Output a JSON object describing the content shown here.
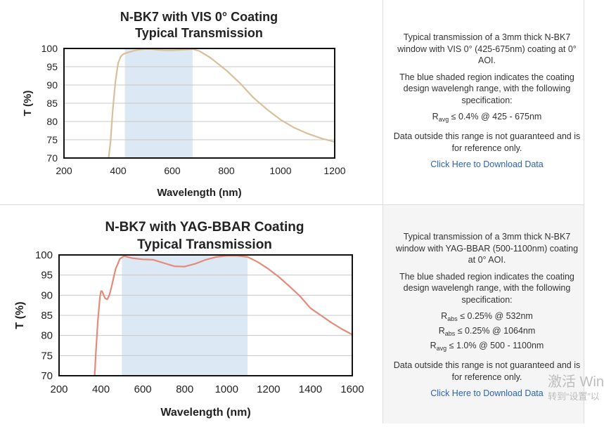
{
  "chart_data": [
    {
      "type": "line",
      "title_line1": "N-BK7 with VIS 0° Coating",
      "title_line2": "Typical Transmission",
      "xlabel": "Wavelength (nm)",
      "ylabel": "T (%)",
      "xlim": [
        200,
        1200
      ],
      "ylim": [
        70,
        100
      ],
      "xticks": [
        200,
        400,
        600,
        800,
        1000,
        1200
      ],
      "yticks": [
        70,
        75,
        80,
        85,
        90,
        95,
        100
      ],
      "grid": true,
      "shaded_region": [
        425,
        675
      ],
      "line_color": "#d8c09a",
      "shade_color": "#dce9f5",
      "series": [
        {
          "x": [
            365,
            372,
            380,
            390,
            400,
            410,
            420,
            440,
            460,
            480,
            500,
            525,
            550,
            575,
            600,
            625,
            650,
            675,
            700,
            740,
            800,
            850,
            900,
            950,
            1000,
            1050,
            1100,
            1150,
            1200
          ],
          "values": [
            70,
            74.5,
            83,
            91,
            96,
            97.8,
            98.5,
            99,
            99.4,
            99.7,
            99.8,
            99.8,
            99.6,
            99.5,
            99.5,
            99.6,
            99.7,
            99.8,
            99.3,
            97.5,
            94,
            90.5,
            86.5,
            83.3,
            80.5,
            78.3,
            76.7,
            75.4,
            74.4
          ]
        }
      ]
    },
    {
      "type": "line",
      "title_line1": "N-BK7 with YAG-BBAR Coating",
      "title_line2": "Typical Transmission",
      "xlabel": "Wavelength (nm)",
      "ylabel": "T (%)",
      "xlim": [
        200,
        1600
      ],
      "ylim": [
        70,
        100
      ],
      "xticks": [
        200,
        400,
        600,
        800,
        1000,
        1200,
        1400,
        1600
      ],
      "yticks": [
        70,
        75,
        80,
        85,
        90,
        95,
        100
      ],
      "grid": true,
      "shaded_region": [
        500,
        1100
      ],
      "line_color": "#e58a78",
      "shade_color": "#dce9f5",
      "series": [
        {
          "x": [
            370,
            375,
            385,
            395,
            400,
            405,
            420,
            430,
            440,
            450,
            470,
            490,
            510,
            550,
            600,
            650,
            700,
            750,
            800,
            850,
            900,
            950,
            1000,
            1050,
            1100,
            1150,
            1200,
            1250,
            1300,
            1350,
            1400,
            1450,
            1500,
            1550,
            1600
          ],
          "values": [
            70,
            75,
            83.5,
            89.5,
            91,
            91,
            89.2,
            89,
            90,
            92,
            96.5,
            99,
            99.7,
            99.2,
            98.9,
            98.8,
            98,
            97.2,
            97.1,
            97.8,
            98.8,
            99.5,
            99.8,
            99.8,
            99.5,
            98.2,
            96.5,
            94.5,
            92.2,
            89.8,
            86.8,
            85,
            83.2,
            81.6,
            80.2
          ]
        }
      ]
    }
  ],
  "panels": [
    {
      "desc1": "Typical transmission of a 3mm thick N-BK7 window with VIS 0° (425-675nm) coating at 0° AOI.",
      "desc2": "The blue shaded region indicates the coating design wavelengh range, with the following specification:",
      "specs": [
        {
          "sym": "R",
          "sub": "avg",
          "text": " ≤ 0.4% @ 425 - 675nm"
        }
      ],
      "desc3": "Data outside this range is not guaranteed and is for reference only.",
      "link": "Click Here to Download Data"
    },
    {
      "desc1": "Typical transmission of a 3mm thick N-BK7 window with YAG-BBAR (500-1100nm) coating at 0° AOI.",
      "desc2": "The blue shaded region indicates the coating design wavelengh range, with the following specification:",
      "specs": [
        {
          "sym": "R",
          "sub": "abs",
          "text": " ≤ 0.25% @ 532nm"
        },
        {
          "sym": "R",
          "sub": "abs",
          "text": " ≤ 0.25% @ 1064nm"
        },
        {
          "sym": "R",
          "sub": "avg",
          "text": " ≤ 1.0% @ 500 - 1100nm"
        }
      ],
      "desc3": "Data outside this range is not guaranteed and is for reference only.",
      "link": "Click Here to Download Data"
    }
  ],
  "watermark": {
    "line1": "激活 Win",
    "line2": "转到“设置”以"
  }
}
